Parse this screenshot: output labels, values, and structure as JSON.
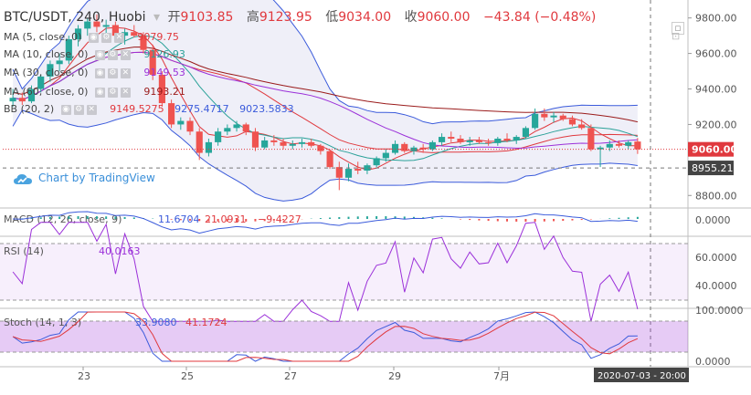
{
  "header": {
    "symbol": "BTC/USDT, 240, Huobi",
    "open_label": "开",
    "open": "9103.85",
    "high_label": "高",
    "high": "9123.95",
    "low_label": "低",
    "low": "9034.00",
    "close_label": "收",
    "close": "9060.00",
    "change": "−43.84 (−0.48%)"
  },
  "indicators": [
    {
      "label": "MA (5, close, 0)",
      "values": [
        "9079.75"
      ],
      "color": "#e0393e"
    },
    {
      "label": "MA (10, close, 0)",
      "values": [
        "9126.93"
      ],
      "color": "#2aa198"
    },
    {
      "label": "MA (30, close, 0)",
      "values": [
        "9149.53"
      ],
      "color": "#9b30d9"
    },
    {
      "label": "MA (60, close, 0)",
      "values": [
        "9193.21"
      ],
      "color": "#9a1b1b"
    },
    {
      "label": "BB (20, 2)",
      "values": [
        "9149.5275",
        "9275.4717",
        "9023.5833"
      ],
      "color": "#e0393e"
    }
  ],
  "watermark": "Chart by TradingView",
  "price_axis": {
    "ticks": [
      "9800.00",
      "9600.00",
      "9400.00",
      "9200.00",
      "8800.00"
    ],
    "last_price": "9060.00",
    "cursor_price": "8955.21"
  },
  "macd": {
    "label": "MACD (12, 26, close, 9)",
    "values": [
      "11.6704",
      "21.0931",
      "−9.4227"
    ],
    "tick": "0.0000"
  },
  "rsi": {
    "label": "RSI (14)",
    "value": "40.0163",
    "ticks": [
      "60.0000",
      "40.0000"
    ]
  },
  "stoch": {
    "label": "Stoch (14, 1, 3)",
    "values": [
      "33.9080",
      "41.1724"
    ],
    "ticks": [
      "100.0000",
      "0.0000"
    ]
  },
  "time_axis": {
    "labels": [
      "23",
      "25",
      "27",
      "29",
      "7月"
    ],
    "cursor_time": "2020-07-03 - 20:00"
  },
  "chart_data": {
    "type": "candlestick",
    "title": "BTC/USDT, 240, Huobi",
    "up_color": "#26a69a",
    "down_color": "#ef5350",
    "ylim": [
      8750,
      9860
    ],
    "candles": [
      [
        9330,
        9400,
        9300,
        9350
      ],
      [
        9350,
        9380,
        9310,
        9330
      ],
      [
        9330,
        9420,
        9320,
        9400
      ],
      [
        9400,
        9480,
        9380,
        9470
      ],
      [
        9470,
        9560,
        9440,
        9540
      ],
      [
        9540,
        9600,
        9500,
        9560
      ],
      [
        9560,
        9700,
        9540,
        9680
      ],
      [
        9680,
        9760,
        9640,
        9740
      ],
      [
        9740,
        9800,
        9700,
        9780
      ],
      [
        9780,
        9820,
        9720,
        9750
      ],
      [
        9750,
        9790,
        9700,
        9760
      ],
      [
        9760,
        9780,
        9680,
        9700
      ],
      [
        9700,
        9740,
        9650,
        9720
      ],
      [
        9720,
        9760,
        9690,
        9700
      ],
      [
        9700,
        9720,
        9600,
        9620
      ],
      [
        9620,
        9650,
        9450,
        9480
      ],
      [
        9480,
        9500,
        9300,
        9320
      ],
      [
        9320,
        9340,
        9180,
        9200
      ],
      [
        9200,
        9240,
        9170,
        9220
      ],
      [
        9220,
        9240,
        9140,
        9160
      ],
      [
        9160,
        9180,
        9000,
        9040
      ],
      [
        9040,
        9120,
        9020,
        9100
      ],
      [
        9100,
        9180,
        9080,
        9160
      ],
      [
        9160,
        9200,
        9140,
        9180
      ],
      [
        9180,
        9220,
        9160,
        9200
      ],
      [
        9200,
        9210,
        9140,
        9160
      ],
      [
        9160,
        9180,
        9050,
        9070
      ],
      [
        9070,
        9130,
        9060,
        9110
      ],
      [
        9110,
        9140,
        9080,
        9100
      ],
      [
        9100,
        9120,
        9060,
        9080
      ],
      [
        9080,
        9110,
        9060,
        9090
      ],
      [
        9090,
        9120,
        9070,
        9100
      ],
      [
        9100,
        9120,
        9070,
        9080
      ],
      [
        9080,
        9090,
        9030,
        9050
      ],
      [
        9050,
        9060,
        8950,
        8960
      ],
      [
        8960,
        8990,
        8830,
        8900
      ],
      [
        8900,
        8980,
        8880,
        8950
      ],
      [
        8950,
        8990,
        8920,
        8940
      ],
      [
        8940,
        8980,
        8920,
        8970
      ],
      [
        8970,
        9020,
        8960,
        9010
      ],
      [
        9010,
        9060,
        8990,
        9040
      ],
      [
        9040,
        9110,
        9030,
        9090
      ],
      [
        9090,
        9100,
        9040,
        9050
      ],
      [
        9050,
        9080,
        9030,
        9070
      ],
      [
        9070,
        9090,
        9040,
        9060
      ],
      [
        9060,
        9110,
        9050,
        9100
      ],
      [
        9100,
        9150,
        9080,
        9130
      ],
      [
        9130,
        9160,
        9100,
        9120
      ],
      [
        9120,
        9140,
        9090,
        9100
      ],
      [
        9100,
        9130,
        9080,
        9110
      ],
      [
        9110,
        9130,
        9090,
        9100
      ],
      [
        9100,
        9120,
        9080,
        9095
      ],
      [
        9095,
        9130,
        9080,
        9120
      ],
      [
        9120,
        9150,
        9100,
        9110
      ],
      [
        9110,
        9140,
        9090,
        9130
      ],
      [
        9130,
        9190,
        9120,
        9180
      ],
      [
        9180,
        9290,
        9170,
        9260
      ],
      [
        9260,
        9290,
        9220,
        9240
      ],
      [
        9240,
        9270,
        9210,
        9250
      ],
      [
        9250,
        9260,
        9220,
        9230
      ],
      [
        9230,
        9250,
        9190,
        9200
      ],
      [
        9200,
        9230,
        9170,
        9180
      ],
      [
        9180,
        9200,
        9050,
        9060
      ],
      [
        9060,
        9080,
        8960,
        9070
      ],
      [
        9070,
        9110,
        9050,
        9090
      ],
      [
        9090,
        9110,
        9070,
        9080
      ],
      [
        9080,
        9110,
        9060,
        9100
      ],
      [
        9103.85,
        9123.95,
        9034,
        9060
      ]
    ]
  }
}
